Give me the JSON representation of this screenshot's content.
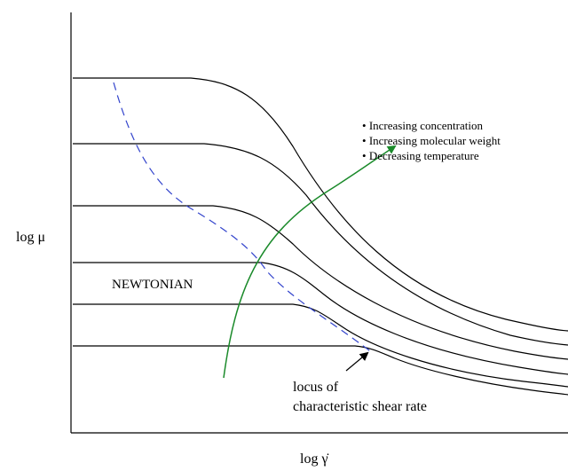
{
  "diagram": {
    "y_axis_label": "log μ",
    "x_axis_label": "log γ̇",
    "region_label": "NEWTONIAN",
    "trend_effects": [
      "Increasing concentration",
      "Increasing molecular weight",
      "Decreasing temperature"
    ],
    "locus_label_lines": [
      "locus of",
      "characteristic shear rate"
    ],
    "colors": {
      "curves": "#000000",
      "locus_line": "#3344cc",
      "trend_arrow": "#1a8a2a",
      "pointer_arrow": "#000000"
    }
  }
}
